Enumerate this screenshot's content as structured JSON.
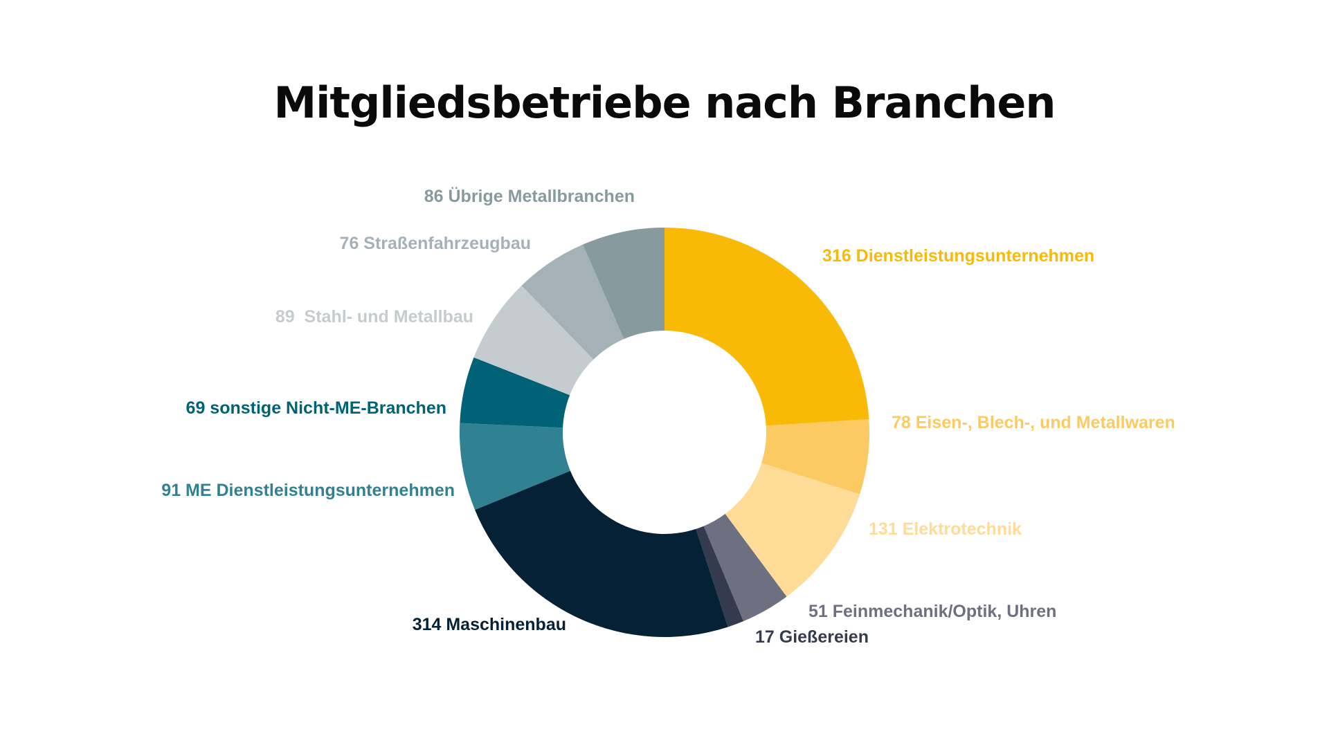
{
  "chart_data": {
    "type": "pie",
    "variant": "donut",
    "title": "Mitgliedsbetriebe nach Branchen",
    "start": "top, clockwise",
    "slices": [
      {
        "label": "316 Dienstleistungsunternehmen",
        "value": 316,
        "color": "#F8B907"
      },
      {
        "label": "78 Eisen-, Blech-, und Metallwaren",
        "value": 78,
        "color": "#FCCA62"
      },
      {
        "label": "131 Elektrotechnik",
        "value": 131,
        "color": "#FEDB96"
      },
      {
        "label": "51 Feinmechanik/Optik, Uhren",
        "value": 51,
        "color": "#6D7081"
      },
      {
        "label": "17 Gießereien",
        "value": 17,
        "color": "#353B4E"
      },
      {
        "label": "314 Maschinenbau",
        "value": 314,
        "color": "#052135"
      },
      {
        "label": "91 ME Dienstleistungsunternehmen",
        "value": 91,
        "color": "#308191"
      },
      {
        "label": "69 sonstige Nicht-ME-Branchen",
        "value": 69,
        "color": "#006276"
      },
      {
        "label": "89  Stahl- und Metallbau",
        "value": 89,
        "color": "#C5CCCF"
      },
      {
        "label": "76 Straßenfahrzeugbau",
        "value": 76,
        "color": "#A4B1B6"
      },
      {
        "label": "86 Übrige Metallbranchen",
        "value": 86,
        "color": "#879A9E"
      }
    ]
  }
}
